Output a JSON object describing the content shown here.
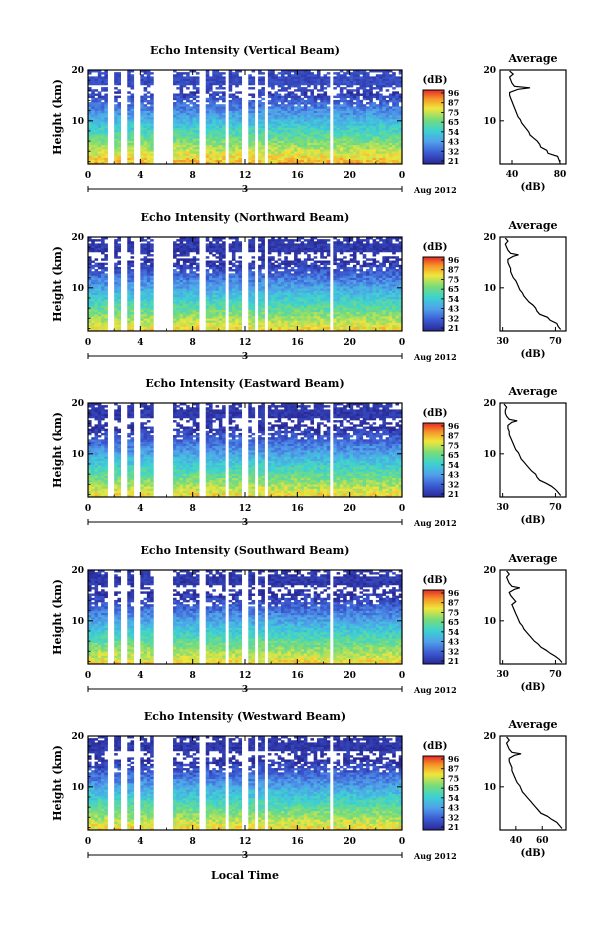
{
  "figure": {
    "month_label": "Aug 2012",
    "day_label": "3",
    "xlabel": "Local Time",
    "ylabel": "Height (km)",
    "avg_title": "Average",
    "avg_xlabel": "(dB)",
    "colorbar_title": "(dB)"
  },
  "chart_data": [
    {
      "type": "heatmap",
      "title": "Echo Intensity (Vertical Beam)",
      "ylabel": "Height (km)",
      "x_ticks": [
        "0",
        "4",
        "8",
        "12",
        "16",
        "20",
        "0"
      ],
      "x_range": [
        0,
        24
      ],
      "y_ticks": [
        "10",
        "20"
      ],
      "y_range": [
        1.5,
        20
      ],
      "colorbar_ticks": [
        "96",
        "87",
        "75",
        "65",
        "54",
        "43",
        "32",
        "21"
      ],
      "gaps_hours": [
        [
          1.4,
          1.9
        ],
        [
          2.5,
          3.1
        ],
        [
          3.6,
          3.9
        ],
        [
          4.9,
          6.4
        ],
        [
          8.4,
          8.9
        ],
        [
          10.4,
          10.8
        ],
        [
          11.8,
          12.2
        ],
        [
          12.8,
          13.1
        ],
        [
          13.5,
          13.7
        ],
        [
          18.4,
          18.7
        ]
      ],
      "average": {
        "x_ticks": [
          "40",
          "80"
        ],
        "x_range": [
          30,
          85
        ],
        "y_ticks": [
          "10",
          "20"
        ],
        "profile": [
          [
            1.8,
            80
          ],
          [
            2.4,
            79
          ],
          [
            3,
            78
          ],
          [
            3.6,
            70
          ],
          [
            4.2,
            69
          ],
          [
            4.8,
            64
          ],
          [
            5.4,
            63
          ],
          [
            6,
            61
          ],
          [
            6.6,
            58
          ],
          [
            7.2,
            55
          ],
          [
            7.8,
            54
          ],
          [
            8.4,
            52
          ],
          [
            9,
            50
          ],
          [
            9.6,
            48
          ],
          [
            10.2,
            47
          ],
          [
            10.8,
            45
          ],
          [
            11.4,
            44
          ],
          [
            12,
            43
          ],
          [
            12.6,
            42
          ],
          [
            13.2,
            41
          ],
          [
            13.8,
            40
          ],
          [
            14.4,
            39
          ],
          [
            15,
            38
          ],
          [
            15.6,
            38
          ],
          [
            16.2,
            45
          ],
          [
            16.5,
            55
          ],
          [
            16.8,
            42
          ],
          [
            17.4,
            40
          ],
          [
            18,
            39
          ],
          [
            18.6,
            38
          ],
          [
            19.2,
            41
          ],
          [
            19.8,
            38
          ]
        ]
      }
    },
    {
      "type": "heatmap",
      "title": "Echo Intensity (Northward Beam)",
      "ylabel": "Height (km)",
      "x_ticks": [
        "0",
        "4",
        "8",
        "12",
        "16",
        "20",
        "0"
      ],
      "x_range": [
        0,
        24
      ],
      "y_ticks": [
        "10",
        "20"
      ],
      "y_range": [
        1.5,
        20
      ],
      "colorbar_ticks": [
        "96",
        "87",
        "75",
        "65",
        "54",
        "43",
        "32",
        "21"
      ],
      "gaps_hours": [
        [
          1.4,
          1.9
        ],
        [
          2.5,
          3.1
        ],
        [
          3.6,
          3.9
        ],
        [
          4.9,
          6.4
        ],
        [
          8.4,
          8.9
        ],
        [
          10.4,
          10.8
        ],
        [
          11.8,
          12.2
        ],
        [
          12.8,
          13.1
        ],
        [
          13.5,
          13.7
        ],
        [
          18.4,
          18.7
        ]
      ],
      "average": {
        "x_ticks": [
          "30",
          "70"
        ],
        "x_range": [
          28,
          78
        ],
        "y_ticks": [
          "10",
          "20"
        ],
        "profile": [
          [
            1.8,
            74
          ],
          [
            2.4,
            72
          ],
          [
            3,
            71
          ],
          [
            3.6,
            66
          ],
          [
            4.2,
            64
          ],
          [
            4.8,
            58
          ],
          [
            5.4,
            56
          ],
          [
            6,
            55
          ],
          [
            6.6,
            53
          ],
          [
            7.2,
            50
          ],
          [
            7.8,
            48
          ],
          [
            8.4,
            46
          ],
          [
            9,
            45
          ],
          [
            9.6,
            43
          ],
          [
            10.2,
            42
          ],
          [
            10.8,
            41
          ],
          [
            11.4,
            40
          ],
          [
            12,
            38
          ],
          [
            12.6,
            37
          ],
          [
            13.2,
            36
          ],
          [
            13.8,
            36
          ],
          [
            14.4,
            35
          ],
          [
            15,
            34
          ],
          [
            15.6,
            34
          ],
          [
            16.2,
            38
          ],
          [
            16.5,
            42
          ],
          [
            16.8,
            36
          ],
          [
            17.4,
            34
          ],
          [
            18,
            33
          ],
          [
            18.6,
            32
          ],
          [
            19.2,
            34
          ],
          [
            19.8,
            32
          ]
        ]
      }
    },
    {
      "type": "heatmap",
      "title": "Echo Intensity (Eastward Beam)",
      "ylabel": "Height (km)",
      "x_ticks": [
        "0",
        "4",
        "8",
        "12",
        "16",
        "20",
        "0"
      ],
      "x_range": [
        0,
        24
      ],
      "y_ticks": [
        "10",
        "20"
      ],
      "y_range": [
        1.5,
        20
      ],
      "colorbar_ticks": [
        "96",
        "87",
        "75",
        "65",
        "54",
        "43",
        "32",
        "21"
      ],
      "gaps_hours": [
        [
          1.4,
          1.9
        ],
        [
          2.5,
          3.1
        ],
        [
          3.6,
          3.9
        ],
        [
          4.9,
          6.4
        ],
        [
          8.4,
          8.9
        ],
        [
          10.4,
          10.8
        ],
        [
          11.8,
          12.2
        ],
        [
          12.8,
          13.1
        ],
        [
          13.5,
          13.7
        ],
        [
          18.4,
          18.7
        ]
      ],
      "average": {
        "x_ticks": [
          "30",
          "70"
        ],
        "x_range": [
          28,
          78
        ],
        "y_ticks": [
          "10",
          "20"
        ],
        "profile": [
          [
            1.8,
            74
          ],
          [
            2.4,
            72
          ],
          [
            3,
            70
          ],
          [
            3.6,
            67
          ],
          [
            4.2,
            63
          ],
          [
            4.8,
            58
          ],
          [
            5.4,
            56
          ],
          [
            6,
            55
          ],
          [
            6.6,
            52
          ],
          [
            7.2,
            50
          ],
          [
            7.8,
            48
          ],
          [
            8.4,
            46
          ],
          [
            9,
            44
          ],
          [
            9.6,
            43
          ],
          [
            10.2,
            42
          ],
          [
            10.8,
            40
          ],
          [
            11.4,
            39
          ],
          [
            12,
            38
          ],
          [
            12.6,
            37
          ],
          [
            13.2,
            36
          ],
          [
            13.8,
            35
          ],
          [
            14.4,
            35
          ],
          [
            15,
            34
          ],
          [
            15.6,
            34
          ],
          [
            16.2,
            37
          ],
          [
            16.5,
            41
          ],
          [
            16.8,
            35
          ],
          [
            17.4,
            33
          ],
          [
            18,
            32
          ],
          [
            18.6,
            32
          ],
          [
            19.2,
            33
          ],
          [
            19.8,
            31
          ]
        ]
      }
    },
    {
      "type": "heatmap",
      "title": "Echo Intensity (Southward Beam)",
      "ylabel": "Height (km)",
      "x_ticks": [
        "0",
        "4",
        "8",
        "12",
        "16",
        "20",
        "0"
      ],
      "x_range": [
        0,
        24
      ],
      "y_ticks": [
        "10",
        "20"
      ],
      "y_range": [
        1.5,
        20
      ],
      "colorbar_ticks": [
        "96",
        "87",
        "75",
        "65",
        "54",
        "43",
        "32",
        "21"
      ],
      "gaps_hours": [
        [
          1.4,
          1.9
        ],
        [
          2.5,
          3.1
        ],
        [
          3.6,
          3.9
        ],
        [
          4.9,
          6.4
        ],
        [
          8.4,
          8.9
        ],
        [
          10.4,
          10.8
        ],
        [
          11.8,
          12.2
        ],
        [
          12.8,
          13.1
        ],
        [
          13.5,
          13.7
        ],
        [
          18.4,
          18.7
        ]
      ],
      "average": {
        "x_ticks": [
          "30",
          "70"
        ],
        "x_range": [
          28,
          78
        ],
        "y_ticks": [
          "10",
          "20"
        ],
        "profile": [
          [
            1.8,
            75
          ],
          [
            2.4,
            73
          ],
          [
            3,
            70
          ],
          [
            3.6,
            66
          ],
          [
            4.2,
            63
          ],
          [
            4.8,
            59
          ],
          [
            5.4,
            57
          ],
          [
            6,
            54
          ],
          [
            6.6,
            52
          ],
          [
            7.2,
            50
          ],
          [
            7.8,
            48
          ],
          [
            8.4,
            46
          ],
          [
            9,
            45
          ],
          [
            9.6,
            43
          ],
          [
            10.2,
            42
          ],
          [
            10.8,
            41
          ],
          [
            11.4,
            40
          ],
          [
            12,
            39
          ],
          [
            12.6,
            38
          ],
          [
            13.2,
            37
          ],
          [
            13.8,
            40
          ],
          [
            14.4,
            38
          ],
          [
            15,
            36
          ],
          [
            15.6,
            35
          ],
          [
            16.2,
            39
          ],
          [
            16.5,
            43
          ],
          [
            16.8,
            37
          ],
          [
            17.4,
            35
          ],
          [
            18,
            34
          ],
          [
            18.6,
            33
          ],
          [
            19.2,
            35
          ],
          [
            19.8,
            33
          ]
        ]
      }
    },
    {
      "type": "heatmap",
      "title": "Echo Intensity (Westward Beam)",
      "ylabel": "Height (km)",
      "x_ticks": [
        "0",
        "4",
        "8",
        "12",
        "16",
        "20",
        "0"
      ],
      "x_range": [
        0,
        24
      ],
      "y_ticks": [
        "10",
        "20"
      ],
      "y_range": [
        1.5,
        20
      ],
      "colorbar_ticks": [
        "96",
        "87",
        "75",
        "65",
        "54",
        "43",
        "32",
        "21"
      ],
      "gaps_hours": [
        [
          1.4,
          1.9
        ],
        [
          2.5,
          3.1
        ],
        [
          3.6,
          3.9
        ],
        [
          4.9,
          6.4
        ],
        [
          8.4,
          8.9
        ],
        [
          10.4,
          10.8
        ],
        [
          11.8,
          12.2
        ],
        [
          12.8,
          13.1
        ],
        [
          13.5,
          13.7
        ],
        [
          18.4,
          18.7
        ]
      ],
      "average": {
        "x_ticks": [
          "40",
          "60"
        ],
        "x_range": [
          28,
          78
        ],
        "y_ticks": [
          "10",
          "20"
        ],
        "profile": [
          [
            1.8,
            75
          ],
          [
            2.4,
            73
          ],
          [
            3,
            71
          ],
          [
            3.6,
            67
          ],
          [
            4.2,
            64
          ],
          [
            4.8,
            59
          ],
          [
            5.4,
            57
          ],
          [
            6,
            55
          ],
          [
            6.6,
            53
          ],
          [
            7.2,
            51
          ],
          [
            7.8,
            49
          ],
          [
            8.4,
            47
          ],
          [
            9,
            45
          ],
          [
            9.6,
            44
          ],
          [
            10.2,
            43
          ],
          [
            10.8,
            41
          ],
          [
            11.4,
            40
          ],
          [
            12,
            39
          ],
          [
            12.6,
            38
          ],
          [
            13.2,
            37
          ],
          [
            13.8,
            37
          ],
          [
            14.4,
            36
          ],
          [
            15,
            35
          ],
          [
            15.6,
            35
          ],
          [
            16.2,
            39
          ],
          [
            16.5,
            44
          ],
          [
            16.8,
            37
          ],
          [
            17.4,
            35
          ],
          [
            18,
            34
          ],
          [
            18.6,
            33
          ],
          [
            19.2,
            35
          ],
          [
            19.8,
            33
          ]
        ]
      }
    }
  ]
}
